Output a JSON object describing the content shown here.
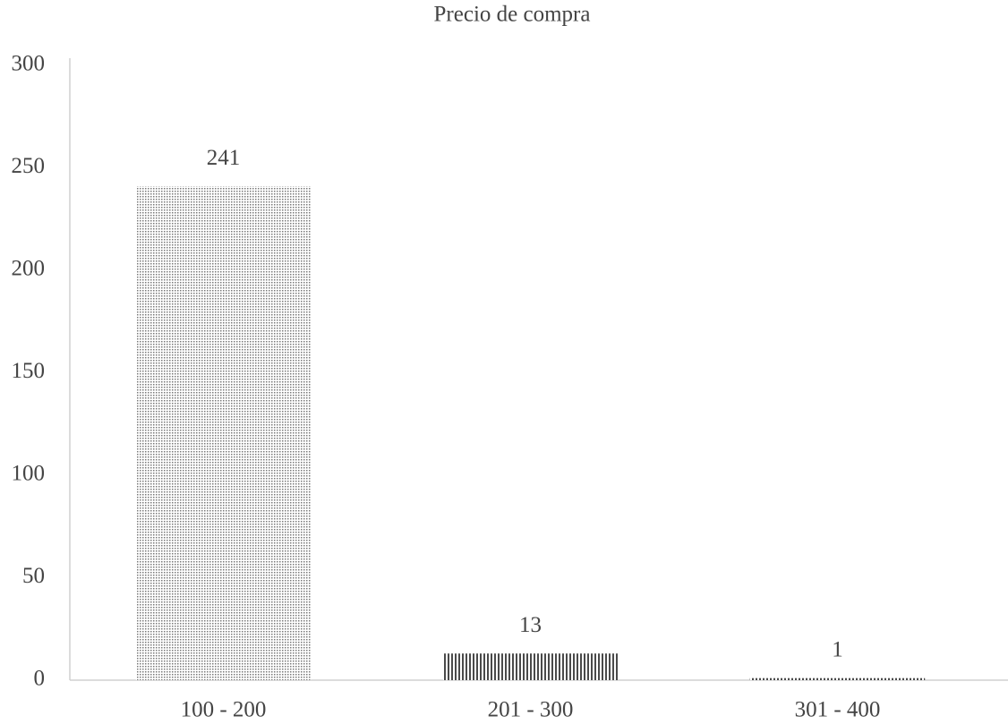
{
  "chart_data": {
    "type": "bar",
    "title": "Precio de compra",
    "categories": [
      "100 - 200",
      "201 - 300",
      "301 - 400"
    ],
    "values": [
      241,
      13,
      1
    ],
    "colors": [
      "#7a7a7a",
      "#4a4a4a",
      "#4a4a4a"
    ],
    "ylim": [
      0,
      300
    ],
    "yticks": [
      0,
      50,
      100,
      150,
      200,
      250,
      300
    ],
    "grid": false
  }
}
